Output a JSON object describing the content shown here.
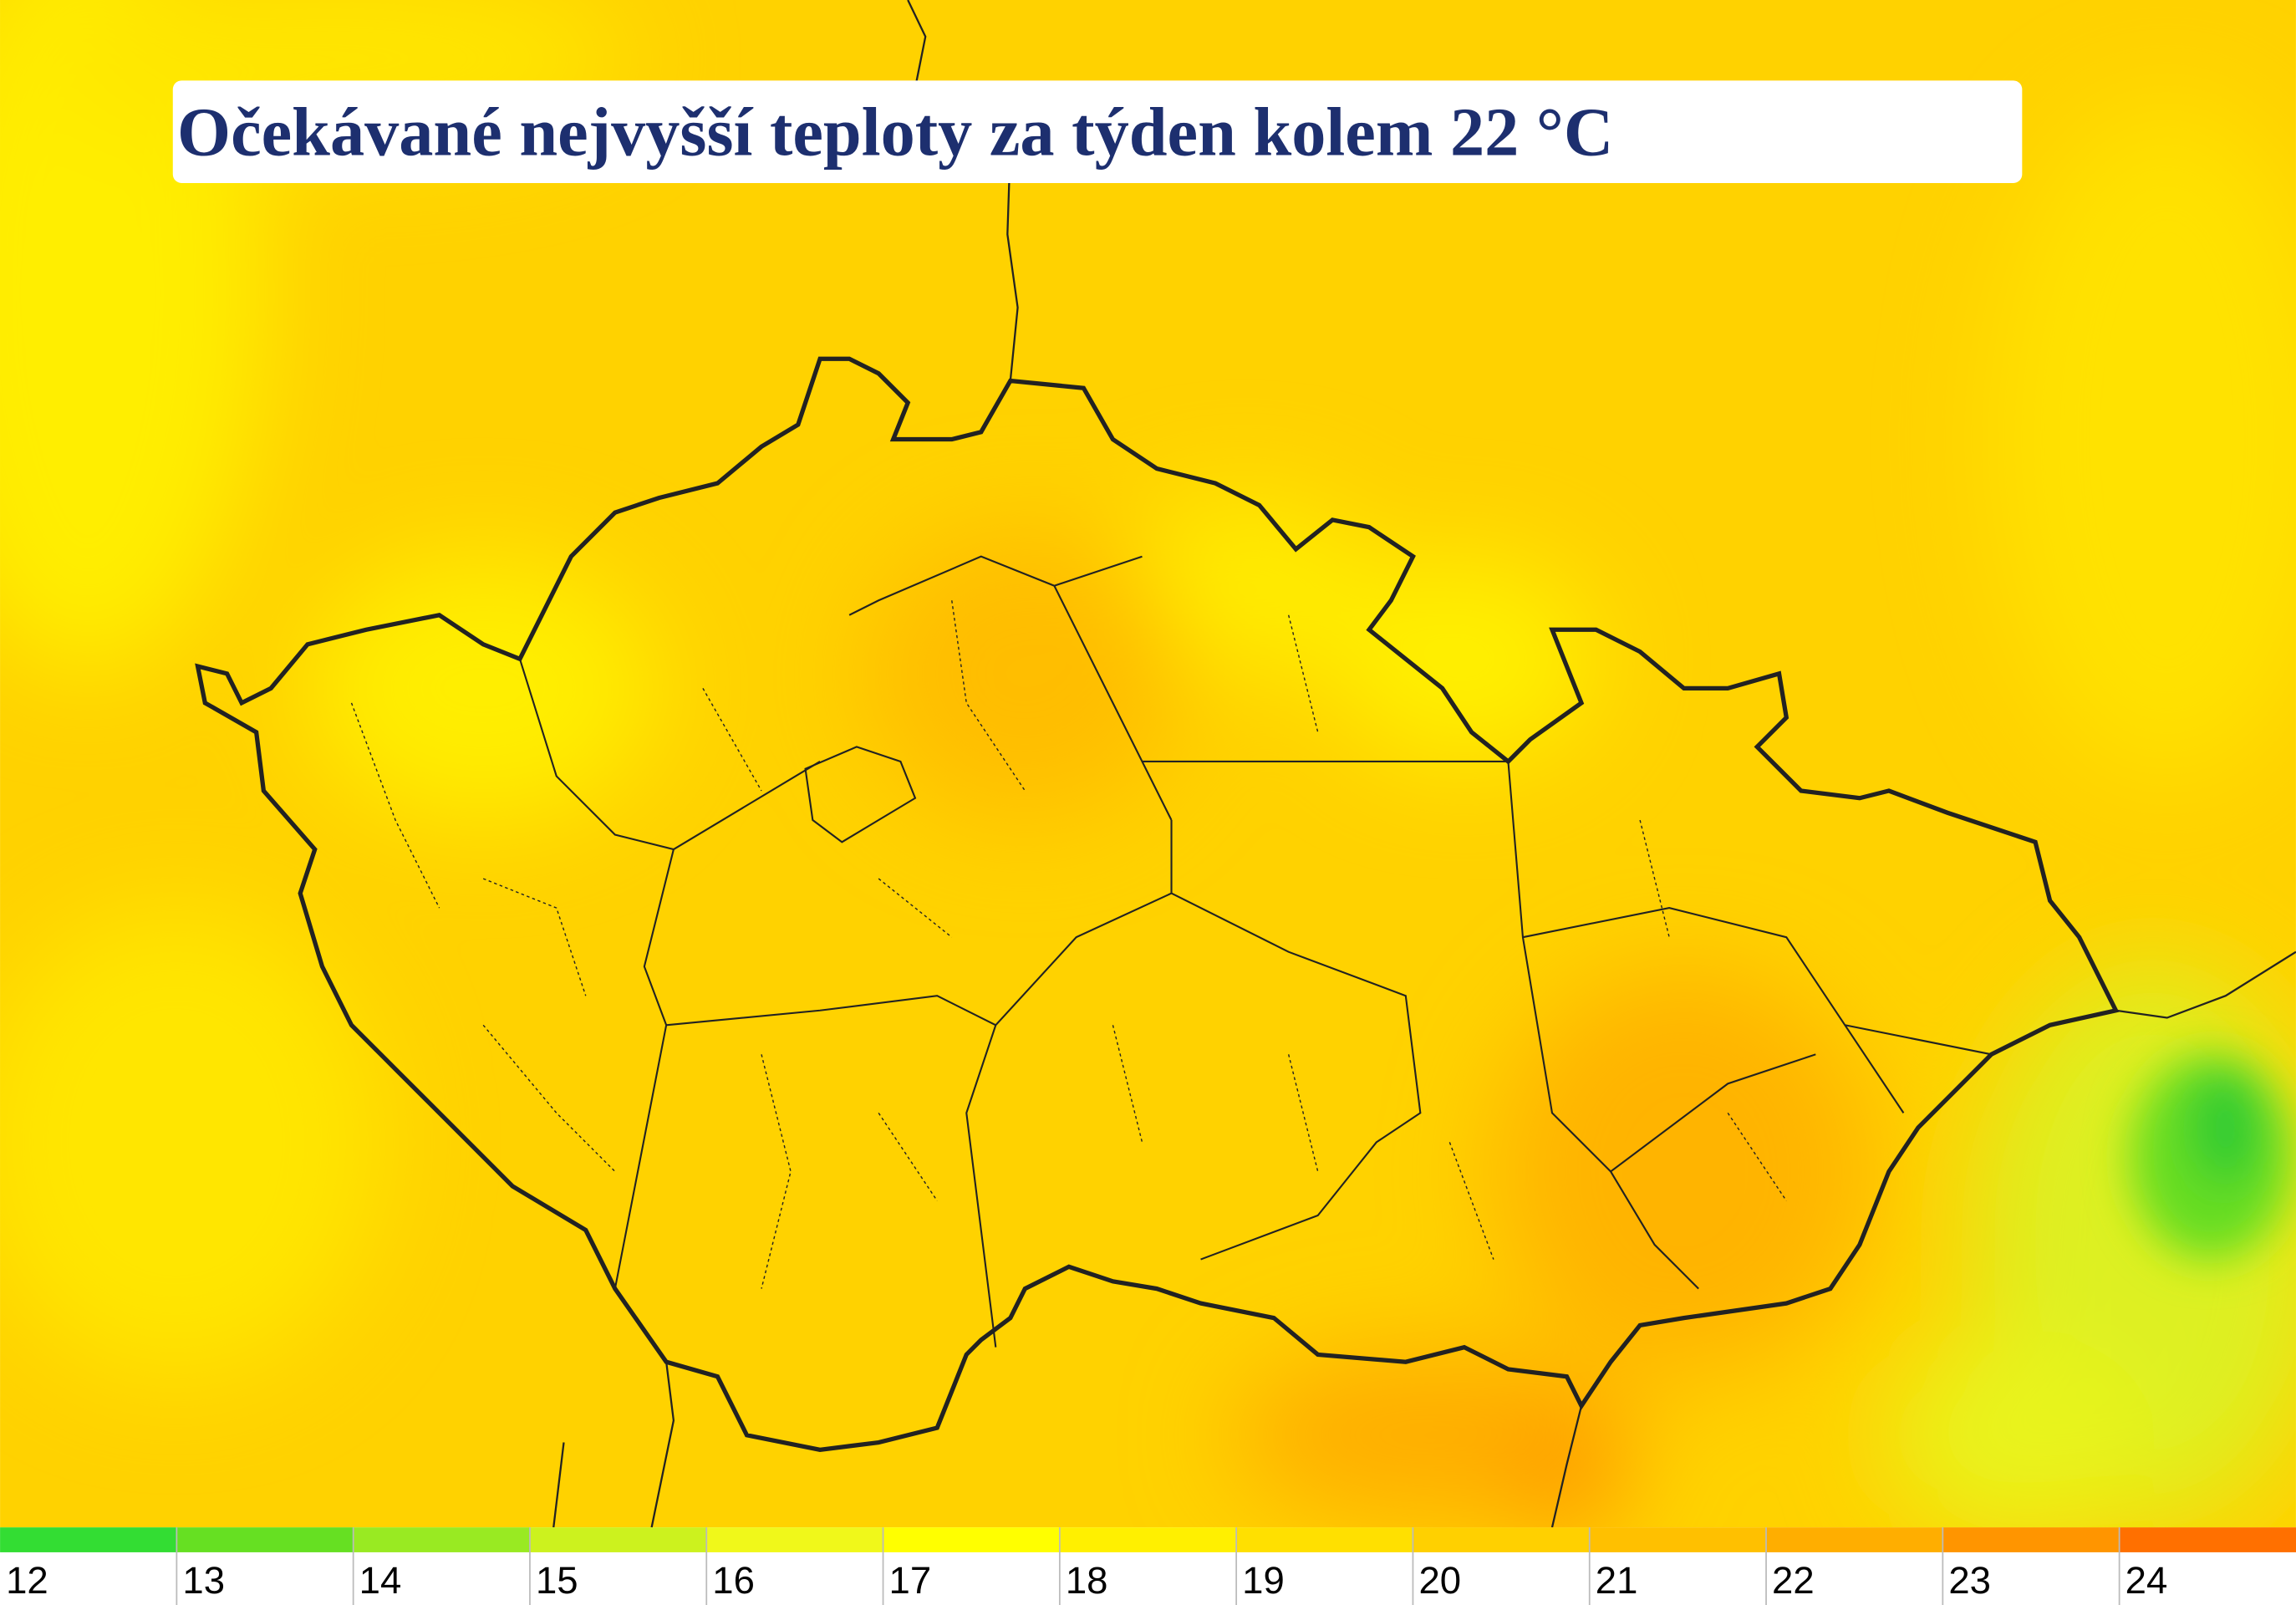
{
  "title": "Očekávané nejvyšší teploty za týden kolem 22 °C",
  "legend": {
    "ticks": [
      12,
      13,
      14,
      15,
      16,
      17,
      18,
      19,
      20,
      21,
      22,
      23,
      24
    ],
    "colors": [
      "#33dd33",
      "#66e022",
      "#99ea22",
      "#ccf21e",
      "#f0f81a",
      "#ffff00",
      "#fff000",
      "#ffe000",
      "#ffd000",
      "#ffc000",
      "#ffae00",
      "#ff9500",
      "#ff7000"
    ]
  }
}
